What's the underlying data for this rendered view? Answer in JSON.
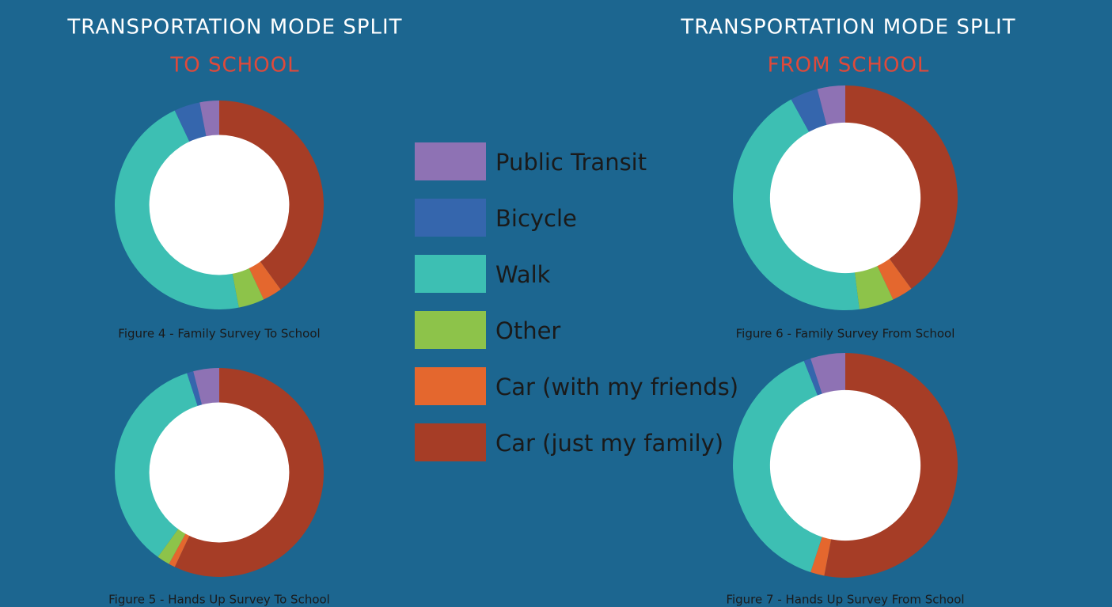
{
  "headings": [
    {
      "title": "TRANSPORTATION MODE SPLIT",
      "subtitle": "TO SCHOOL"
    },
    {
      "title": "TRANSPORTATION MODE SPLIT",
      "subtitle": "FROM SCHOOL"
    }
  ],
  "legend": {
    "categories": [
      "Public Transit",
      "Bicycle",
      "Walk",
      "Other",
      "Car (with my friends)",
      "Car (just my family)"
    ],
    "colors": [
      "#8e72b4",
      "#3566ad",
      "#3dbfb3",
      "#8dc34a",
      "#e4672e",
      "#a63d26"
    ]
  },
  "chart_data": [
    {
      "type": "pie",
      "title": "Figure 4 - Family Survey To School",
      "values": [
        3,
        4,
        46,
        4,
        3,
        40
      ]
    },
    {
      "type": "pie",
      "title": "Figure 5 - Hands Up Survey To School",
      "values": [
        4,
        1,
        35,
        2,
        1,
        57
      ]
    },
    {
      "type": "pie",
      "title": "Figure 6 - Family Survey From School",
      "values": [
        4,
        4,
        44,
        5,
        3,
        40
      ]
    },
    {
      "type": "pie",
      "title": "Figure 7 - Hands Up Survey From School",
      "values": [
        5,
        1,
        39,
        0,
        2,
        53
      ]
    }
  ]
}
